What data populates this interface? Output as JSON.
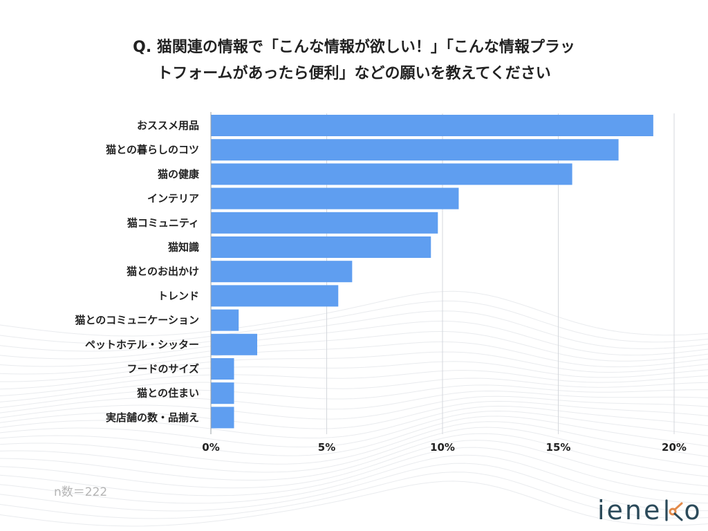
{
  "title_lines": [
    "Q. 猫関連の情報で「こんな情報が欲しい！」「こんな情報プラッ",
    "トフォームがあったら便利」などの願いを教えてください"
  ],
  "sample_size": "n数＝222",
  "logo": {
    "text": "ieneko",
    "colors": {
      "main": "#2b4a5a",
      "accent": "#e38a4a"
    }
  },
  "chart_data": {
    "type": "bar",
    "orientation": "horizontal",
    "categories": [
      "おススメ用品",
      "猫との暮らしのコツ",
      "猫の健康",
      "インテリア",
      "猫コミュニティ",
      "猫知識",
      "猫とのお出かけ",
      "トレンド",
      "猫とのコミュニケーション",
      "ペットホテル・シッター",
      "フードのサイズ",
      "猫との住まい",
      "実店舗の数・品揃え"
    ],
    "values": [
      19.1,
      17.6,
      15.6,
      10.7,
      9.8,
      9.5,
      6.1,
      5.5,
      1.2,
      2.0,
      1.0,
      1.0,
      1.0
    ],
    "unit": "%",
    "xlim": [
      0,
      20
    ],
    "xticks": [
      0,
      5,
      10,
      15,
      20
    ],
    "xtick_labels": [
      "0%",
      "5%",
      "10%",
      "15%",
      "20%"
    ],
    "grid": true,
    "bar_color": "#5f9ef0"
  }
}
